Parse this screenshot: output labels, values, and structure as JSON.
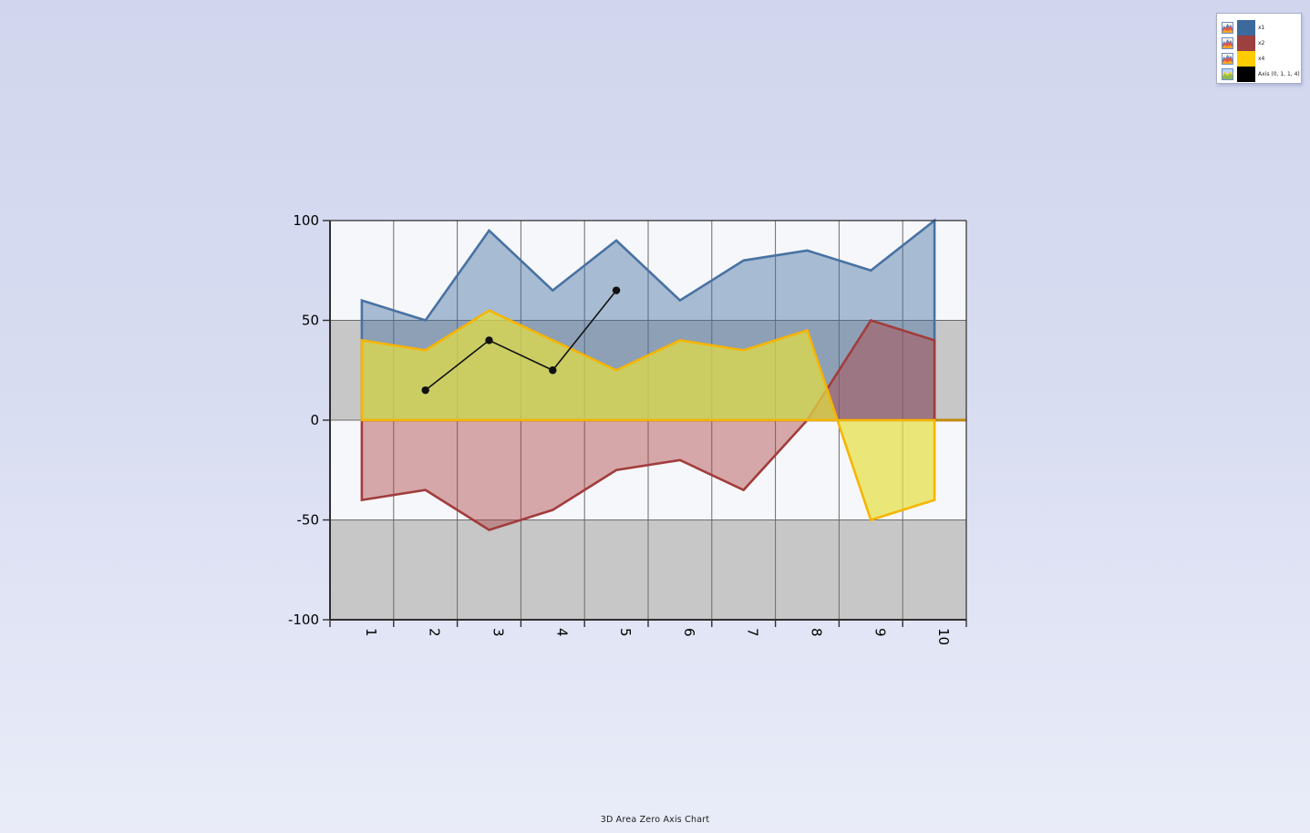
{
  "page": {
    "title": "3D Area Zero Axis Chart"
  },
  "legend": {
    "items": [
      {
        "label": "x1",
        "swatch_color": "#3d6a9d",
        "icon": "area-chart-icon"
      },
      {
        "label": "x2",
        "swatch_color": "#9c4040",
        "icon": "area-chart-icon"
      },
      {
        "label": "x4",
        "swatch_color": "#ffcc00",
        "icon": "area-chart-icon"
      },
      {
        "label": "Axis (0, 1, 1, 4)",
        "swatch_color": "#000000",
        "icon": "area-line-chart-icon"
      }
    ]
  },
  "chart_data": {
    "type": "area",
    "title": "3D Area Zero Axis Chart",
    "categories": [
      "1",
      "2",
      "3",
      "4",
      "5",
      "6",
      "7",
      "8",
      "9",
      "10"
    ],
    "ylim": [
      -100,
      100
    ],
    "yticks": [
      100,
      50,
      0,
      -50,
      -100
    ],
    "baseline": 0,
    "grid": true,
    "legend_position": "top-right",
    "bands": [
      {
        "from": 50,
        "to": 0
      },
      {
        "from": -50,
        "to": -100
      }
    ],
    "series": [
      {
        "name": "x1",
        "type": "area",
        "color": "#4872a2",
        "fill": "#4872a2",
        "fill_opacity": 0.45,
        "values": [
          60,
          50,
          95,
          65,
          90,
          60,
          80,
          85,
          75,
          100
        ]
      },
      {
        "name": "x2",
        "type": "area",
        "color": "#a23c3c",
        "fill": "#b04545",
        "fill_opacity": 0.45,
        "values": [
          -40,
          -35,
          -55,
          -45,
          -25,
          -20,
          -35,
          0,
          50,
          40
        ]
      },
      {
        "name": "x4",
        "type": "area",
        "color": "#f7b500",
        "fill": "#e6e040",
        "fill_opacity": 0.7,
        "values": [
          40,
          35,
          55,
          40,
          25,
          40,
          35,
          45,
          -50,
          -40
        ]
      },
      {
        "name": "Axis (0, 1, 1, 4)",
        "type": "line",
        "color": "#111111",
        "marker": "circle",
        "values": [
          null,
          15,
          40,
          25,
          65,
          null,
          null,
          null,
          null,
          null
        ]
      }
    ],
    "colors": {
      "plot_bg": "#f6f7fb",
      "band": "#c7c7c7",
      "grid": "#6b6b6b",
      "axis": "#2f2f2f",
      "zero_axis_extension": "#c08a10",
      "tick_label": "#000000"
    }
  }
}
